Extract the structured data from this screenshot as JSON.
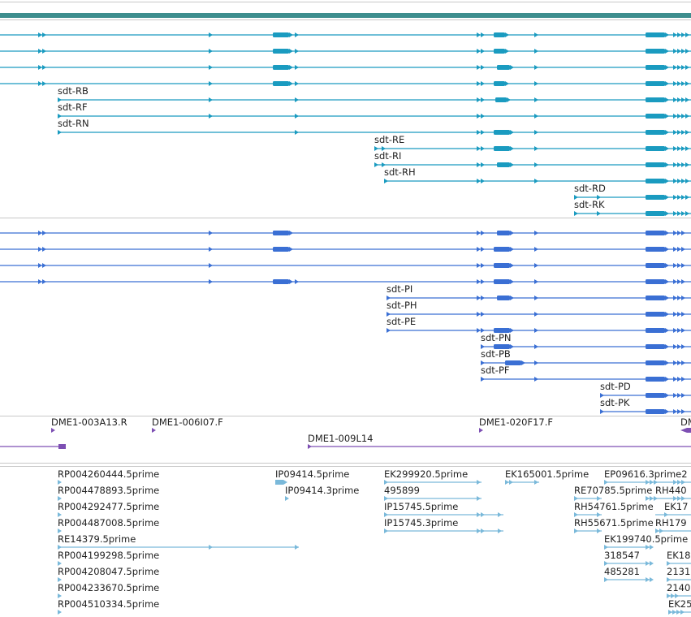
{
  "colors": {
    "transcript": "#1a9bc0",
    "polypeptide": "#3a6fd4",
    "bac": "#7d4fb3",
    "est": "#7ab9da",
    "sequence": "#3e8e8e"
  },
  "tracks": {
    "transcripts": {
      "labels": [
        "sdt-RB",
        "sdt-RF",
        "sdt-RN",
        "sdt-RE",
        "sdt-RI",
        "sdt-RH",
        "sdt-RD",
        "sdt-RK"
      ]
    },
    "polypeptides": {
      "labels": [
        "sdt-PI",
        "sdt-PH",
        "sdt-PE",
        "sdt-PN",
        "sdt-PB",
        "sdt-PF",
        "sdt-PD",
        "sdt-PK"
      ]
    },
    "bac_ends": {
      "labels": [
        "DME1-003A13.R",
        "DME1-006I07.F",
        "DME1-020F17.F",
        "DM",
        "DME1-009L14"
      ]
    },
    "ests": {
      "labels": [
        "RP004260444.5prime",
        "RP004478893.5prime",
        "RP004292477.5prime",
        "RP004487008.5prime",
        "RE14379.5prime",
        "RP004199298.5prime",
        "RP004208047.5prime",
        "RP004233670.5prime",
        "RP004510334.5prime",
        "IP09414.5prime",
        "IP09414.3prime",
        "EK299920.5prime",
        "495899",
        "IP15745.5prime",
        "IP15745.3prime",
        "EK165001.5prime",
        "EP09616.3prime2",
        "RE70785.5prime",
        "RH440",
        "RH54761.5prime",
        "EK17",
        "RH55671.5prime",
        "RH179",
        "EK199740.5prime",
        "318547",
        "485281",
        "EK18",
        "2131",
        "2140",
        "EK25"
      ]
    }
  }
}
